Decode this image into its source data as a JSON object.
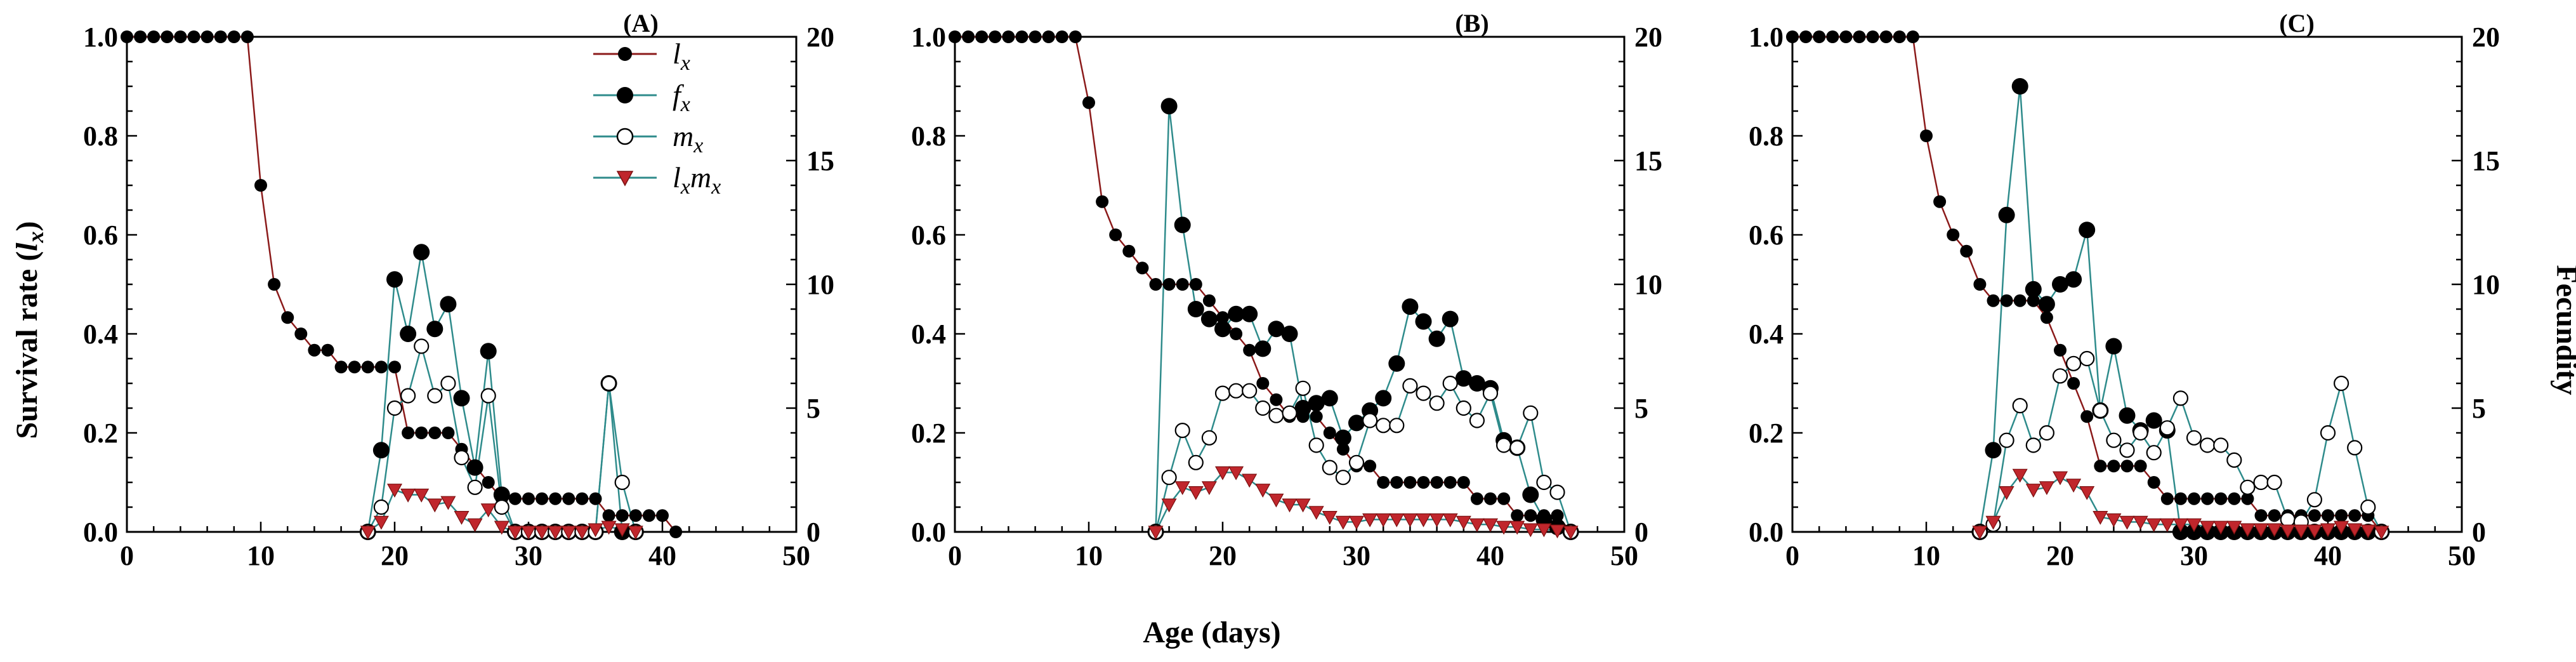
{
  "chart_data": [
    {
      "panel": "(A)",
      "type": "line",
      "xlim": [
        0,
        50
      ],
      "ylim_left": [
        0,
        1.0
      ],
      "ylim_right": [
        0,
        20
      ],
      "xticks": [
        "0",
        "10",
        "20",
        "30",
        "40",
        "50"
      ],
      "yticks_left": [
        "0.0",
        "0.2",
        "0.4",
        "0.6",
        "0.8",
        "1.0"
      ],
      "yticks_right": [
        "0",
        "5",
        "10",
        "15",
        "20"
      ],
      "series": [
        {
          "name": "lx",
          "axis": "left",
          "x": [
            0,
            1,
            2,
            3,
            4,
            5,
            6,
            7,
            8,
            9,
            10,
            11,
            12,
            13,
            14,
            15,
            16,
            17,
            18,
            19,
            20,
            21,
            22,
            23,
            24,
            25,
            26,
            27,
            28,
            29,
            30,
            31,
            32,
            33,
            34,
            35,
            36,
            37,
            38,
            39,
            40,
            41
          ],
          "values": [
            1.0,
            1.0,
            1.0,
            1.0,
            1.0,
            1.0,
            1.0,
            1.0,
            1.0,
            1.0,
            0.7,
            0.5,
            0.433,
            0.4,
            0.367,
            0.367,
            0.333,
            0.333,
            0.333,
            0.333,
            0.333,
            0.2,
            0.2,
            0.2,
            0.2,
            0.167,
            0.133,
            0.1,
            0.067,
            0.067,
            0.067,
            0.067,
            0.067,
            0.067,
            0.067,
            0.067,
            0.033,
            0.033,
            0.033,
            0.033,
            0.033,
            0.0
          ]
        },
        {
          "name": "fx",
          "axis": "right",
          "x": [
            18,
            19,
            20,
            21,
            22,
            23,
            24,
            25,
            26,
            27,
            28,
            29,
            30,
            31,
            32,
            33,
            34,
            35,
            36,
            37,
            38
          ],
          "values": [
            0,
            3.3,
            10.2,
            8.0,
            11.3,
            8.2,
            9.2,
            5.4,
            2.6,
            7.3,
            1.5,
            0,
            0,
            0,
            0,
            0,
            0,
            0,
            6.0,
            0,
            0
          ]
        },
        {
          "name": "mx",
          "axis": "right",
          "x": [
            18,
            19,
            20,
            21,
            22,
            23,
            24,
            25,
            26,
            27,
            28,
            29,
            30,
            31,
            32,
            33,
            34,
            35,
            36,
            37,
            38
          ],
          "values": [
            0,
            1.0,
            5.0,
            5.5,
            7.5,
            5.5,
            6.0,
            3.0,
            1.8,
            5.5,
            1.0,
            0,
            0,
            0,
            0,
            0,
            0,
            0,
            6.0,
            2.0,
            0
          ]
        },
        {
          "name": "lxmx",
          "axis": "right",
          "x": [
            18,
            19,
            20,
            21,
            22,
            23,
            24,
            25,
            26,
            27,
            28,
            29,
            30,
            31,
            32,
            33,
            34,
            35,
            36,
            37,
            38
          ],
          "values": [
            0,
            0.4,
            1.7,
            1.5,
            1.5,
            1.1,
            1.2,
            0.6,
            0.3,
            0.9,
            0.2,
            0,
            0,
            0,
            0,
            0,
            0,
            0.1,
            0.2,
            0.1,
            0
          ]
        }
      ]
    },
    {
      "panel": "(B)",
      "type": "line",
      "xlim": [
        0,
        50
      ],
      "ylim_left": [
        0,
        1.0
      ],
      "ylim_right": [
        0,
        20
      ],
      "xticks": [
        "0",
        "10",
        "20",
        "30",
        "40",
        "50"
      ],
      "yticks_left": [
        "0.0",
        "0.2",
        "0.4",
        "0.6",
        "0.8",
        "1.0"
      ],
      "yticks_right": [
        "0",
        "5",
        "10",
        "15",
        "20"
      ],
      "series": [
        {
          "name": "lx",
          "axis": "left",
          "x": [
            0,
            1,
            2,
            3,
            4,
            5,
            6,
            7,
            8,
            9,
            10,
            11,
            12,
            13,
            14,
            15,
            16,
            17,
            18,
            19,
            20,
            21,
            22,
            23,
            24,
            25,
            26,
            27,
            28,
            29,
            30,
            31,
            32,
            33,
            34,
            35,
            36,
            37,
            38,
            39,
            40,
            41,
            42,
            43,
            44,
            45,
            46
          ],
          "values": [
            1.0,
            1.0,
            1.0,
            1.0,
            1.0,
            1.0,
            1.0,
            1.0,
            1.0,
            1.0,
            0.867,
            0.667,
            0.6,
            0.567,
            0.533,
            0.5,
            0.5,
            0.5,
            0.5,
            0.467,
            0.433,
            0.4,
            0.367,
            0.3,
            0.267,
            0.233,
            0.233,
            0.233,
            0.2,
            0.167,
            0.133,
            0.133,
            0.1,
            0.1,
            0.1,
            0.1,
            0.1,
            0.1,
            0.1,
            0.067,
            0.067,
            0.067,
            0.033,
            0.033,
            0.033,
            0.033,
            0.0
          ]
        },
        {
          "name": "fx",
          "axis": "right",
          "x": [
            15,
            16,
            17,
            18,
            19,
            20,
            21,
            22,
            23,
            24,
            25,
            26,
            27,
            28,
            29,
            30,
            31,
            32,
            33,
            34,
            35,
            36,
            37,
            38,
            39,
            40,
            41,
            42,
            43,
            44,
            45,
            46
          ],
          "values": [
            0,
            17.2,
            12.4,
            9.0,
            8.6,
            8.2,
            8.8,
            8.8,
            7.4,
            8.2,
            8.0,
            5.0,
            5.2,
            5.4,
            3.8,
            4.4,
            4.9,
            5.4,
            6.8,
            9.1,
            8.5,
            7.8,
            8.6,
            6.2,
            6.0,
            5.8,
            3.7,
            3.4,
            1.5,
            0.5,
            0.2,
            0
          ]
        },
        {
          "name": "mx",
          "axis": "right",
          "x": [
            15,
            16,
            17,
            18,
            19,
            20,
            21,
            22,
            23,
            24,
            25,
            26,
            27,
            28,
            29,
            30,
            31,
            32,
            33,
            34,
            35,
            36,
            37,
            38,
            39,
            40,
            41,
            42,
            43,
            44,
            45,
            46
          ],
          "values": [
            0,
            2.2,
            4.1,
            2.8,
            3.8,
            5.6,
            5.7,
            5.7,
            5.0,
            4.7,
            4.8,
            5.8,
            3.5,
            2.6,
            2.2,
            2.8,
            4.5,
            4.3,
            4.3,
            5.9,
            5.6,
            5.2,
            6.0,
            5.0,
            4.5,
            5.6,
            3.5,
            3.4,
            4.8,
            2.0,
            1.6,
            0
          ]
        },
        {
          "name": "lxmx",
          "axis": "right",
          "x": [
            15,
            16,
            17,
            18,
            19,
            20,
            21,
            22,
            23,
            24,
            25,
            26,
            27,
            28,
            29,
            30,
            31,
            32,
            33,
            34,
            35,
            36,
            37,
            38,
            39,
            40,
            41,
            42,
            43,
            44,
            45,
            46
          ],
          "values": [
            0,
            1.1,
            1.8,
            1.6,
            1.8,
            2.4,
            2.4,
            2.1,
            1.7,
            1.3,
            1.1,
            1.1,
            0.8,
            0.6,
            0.4,
            0.4,
            0.5,
            0.5,
            0.5,
            0.5,
            0.5,
            0.5,
            0.5,
            0.4,
            0.3,
            0.3,
            0.2,
            0.2,
            0.1,
            0.1,
            0.05,
            0
          ]
        }
      ]
    },
    {
      "panel": "(C)",
      "type": "line",
      "xlim": [
        0,
        50
      ],
      "ylim_left": [
        0,
        1.0
      ],
      "ylim_right": [
        0,
        20
      ],
      "xticks": [
        "0",
        "10",
        "20",
        "30",
        "40",
        "50"
      ],
      "yticks_left": [
        "0.0",
        "0.2",
        "0.4",
        "0.6",
        "0.8",
        "1.0"
      ],
      "yticks_right": [
        "0",
        "5",
        "10",
        "15",
        "20"
      ],
      "series": [
        {
          "name": "lx",
          "axis": "left",
          "x": [
            0,
            1,
            2,
            3,
            4,
            5,
            6,
            7,
            8,
            9,
            10,
            11,
            12,
            13,
            14,
            15,
            16,
            17,
            18,
            19,
            20,
            21,
            22,
            23,
            24,
            25,
            26,
            27,
            28,
            29,
            30,
            31,
            32,
            33,
            34,
            35,
            36,
            37,
            38,
            39,
            40,
            41,
            42,
            43,
            44
          ],
          "values": [
            1.0,
            1.0,
            1.0,
            1.0,
            1.0,
            1.0,
            1.0,
            1.0,
            1.0,
            1.0,
            0.8,
            0.667,
            0.6,
            0.567,
            0.5,
            0.467,
            0.467,
            0.467,
            0.467,
            0.433,
            0.367,
            0.3,
            0.233,
            0.133,
            0.133,
            0.133,
            0.133,
            0.1,
            0.067,
            0.067,
            0.067,
            0.067,
            0.067,
            0.067,
            0.067,
            0.033,
            0.033,
            0.033,
            0.033,
            0.033,
            0.033,
            0.033,
            0.033,
            0.033,
            0.0
          ]
        },
        {
          "name": "fx",
          "axis": "right",
          "x": [
            14,
            15,
            16,
            17,
            18,
            19,
            20,
            21,
            22,
            23,
            24,
            25,
            26,
            27,
            28,
            29,
            30,
            31,
            32,
            33,
            34,
            35,
            36,
            37,
            38,
            39,
            40,
            41,
            42,
            43,
            44
          ],
          "values": [
            0,
            3.3,
            12.8,
            18.0,
            9.8,
            9.2,
            10.0,
            10.2,
            12.2,
            4.9,
            7.5,
            4.7,
            4.1,
            4.5,
            4.1,
            0,
            0,
            0,
            0,
            0,
            0,
            0,
            0,
            0,
            0,
            0,
            0,
            0,
            0,
            0,
            0
          ]
        },
        {
          "name": "mx",
          "axis": "right",
          "x": [
            14,
            15,
            16,
            17,
            18,
            19,
            20,
            21,
            22,
            23,
            24,
            25,
            26,
            27,
            28,
            29,
            30,
            31,
            32,
            33,
            34,
            35,
            36,
            37,
            38,
            39,
            40,
            41,
            42,
            43,
            44
          ],
          "values": [
            0,
            0.3,
            3.7,
            5.1,
            3.5,
            4.0,
            6.3,
            6.8,
            7.0,
            4.9,
            3.7,
            3.3,
            4.0,
            3.2,
            4.2,
            5.4,
            3.8,
            3.5,
            3.5,
            2.9,
            1.8,
            2.0,
            2.0,
            0.5,
            0.4,
            1.3,
            4.0,
            6.0,
            3.4,
            1.0,
            0
          ]
        },
        {
          "name": "lxmx",
          "axis": "right",
          "x": [
            14,
            15,
            16,
            17,
            18,
            19,
            20,
            21,
            22,
            23,
            24,
            25,
            26,
            27,
            28,
            29,
            30,
            31,
            32,
            33,
            34,
            35,
            36,
            37,
            38,
            39,
            40,
            41,
            42,
            43,
            44
          ],
          "values": [
            0,
            0.4,
            1.6,
            2.3,
            1.7,
            1.8,
            2.2,
            1.9,
            1.6,
            0.6,
            0.5,
            0.4,
            0.4,
            0.3,
            0.3,
            0.3,
            0.3,
            0.2,
            0.2,
            0.2,
            0.1,
            0.1,
            0.1,
            0.05,
            0.05,
            0.05,
            0.1,
            0.2,
            0.1,
            0.05,
            0
          ]
        }
      ]
    }
  ],
  "labels": {
    "xlabel": "Age (days)",
    "ylabel_left_prefix": "Survival rate (",
    "ylabel_left_var": "l",
    "ylabel_left_sub": "x",
    "ylabel_left_suffix": ")",
    "ylabel_right": "Fecundity"
  },
  "legend": [
    {
      "series": "lx",
      "main": "l",
      "sub": "x"
    },
    {
      "series": "fx",
      "main": "f",
      "sub": "x"
    },
    {
      "series": "mx",
      "main": "m",
      "sub": "x"
    },
    {
      "series": "lxmx",
      "main": "l",
      "sub": "x",
      "main2": "m",
      "sub2": "x"
    }
  ],
  "colors": {
    "lx": "#8b1a1a",
    "teal": "#2e8b8b",
    "marker_red": "#c0262c",
    "black": "#000000"
  }
}
